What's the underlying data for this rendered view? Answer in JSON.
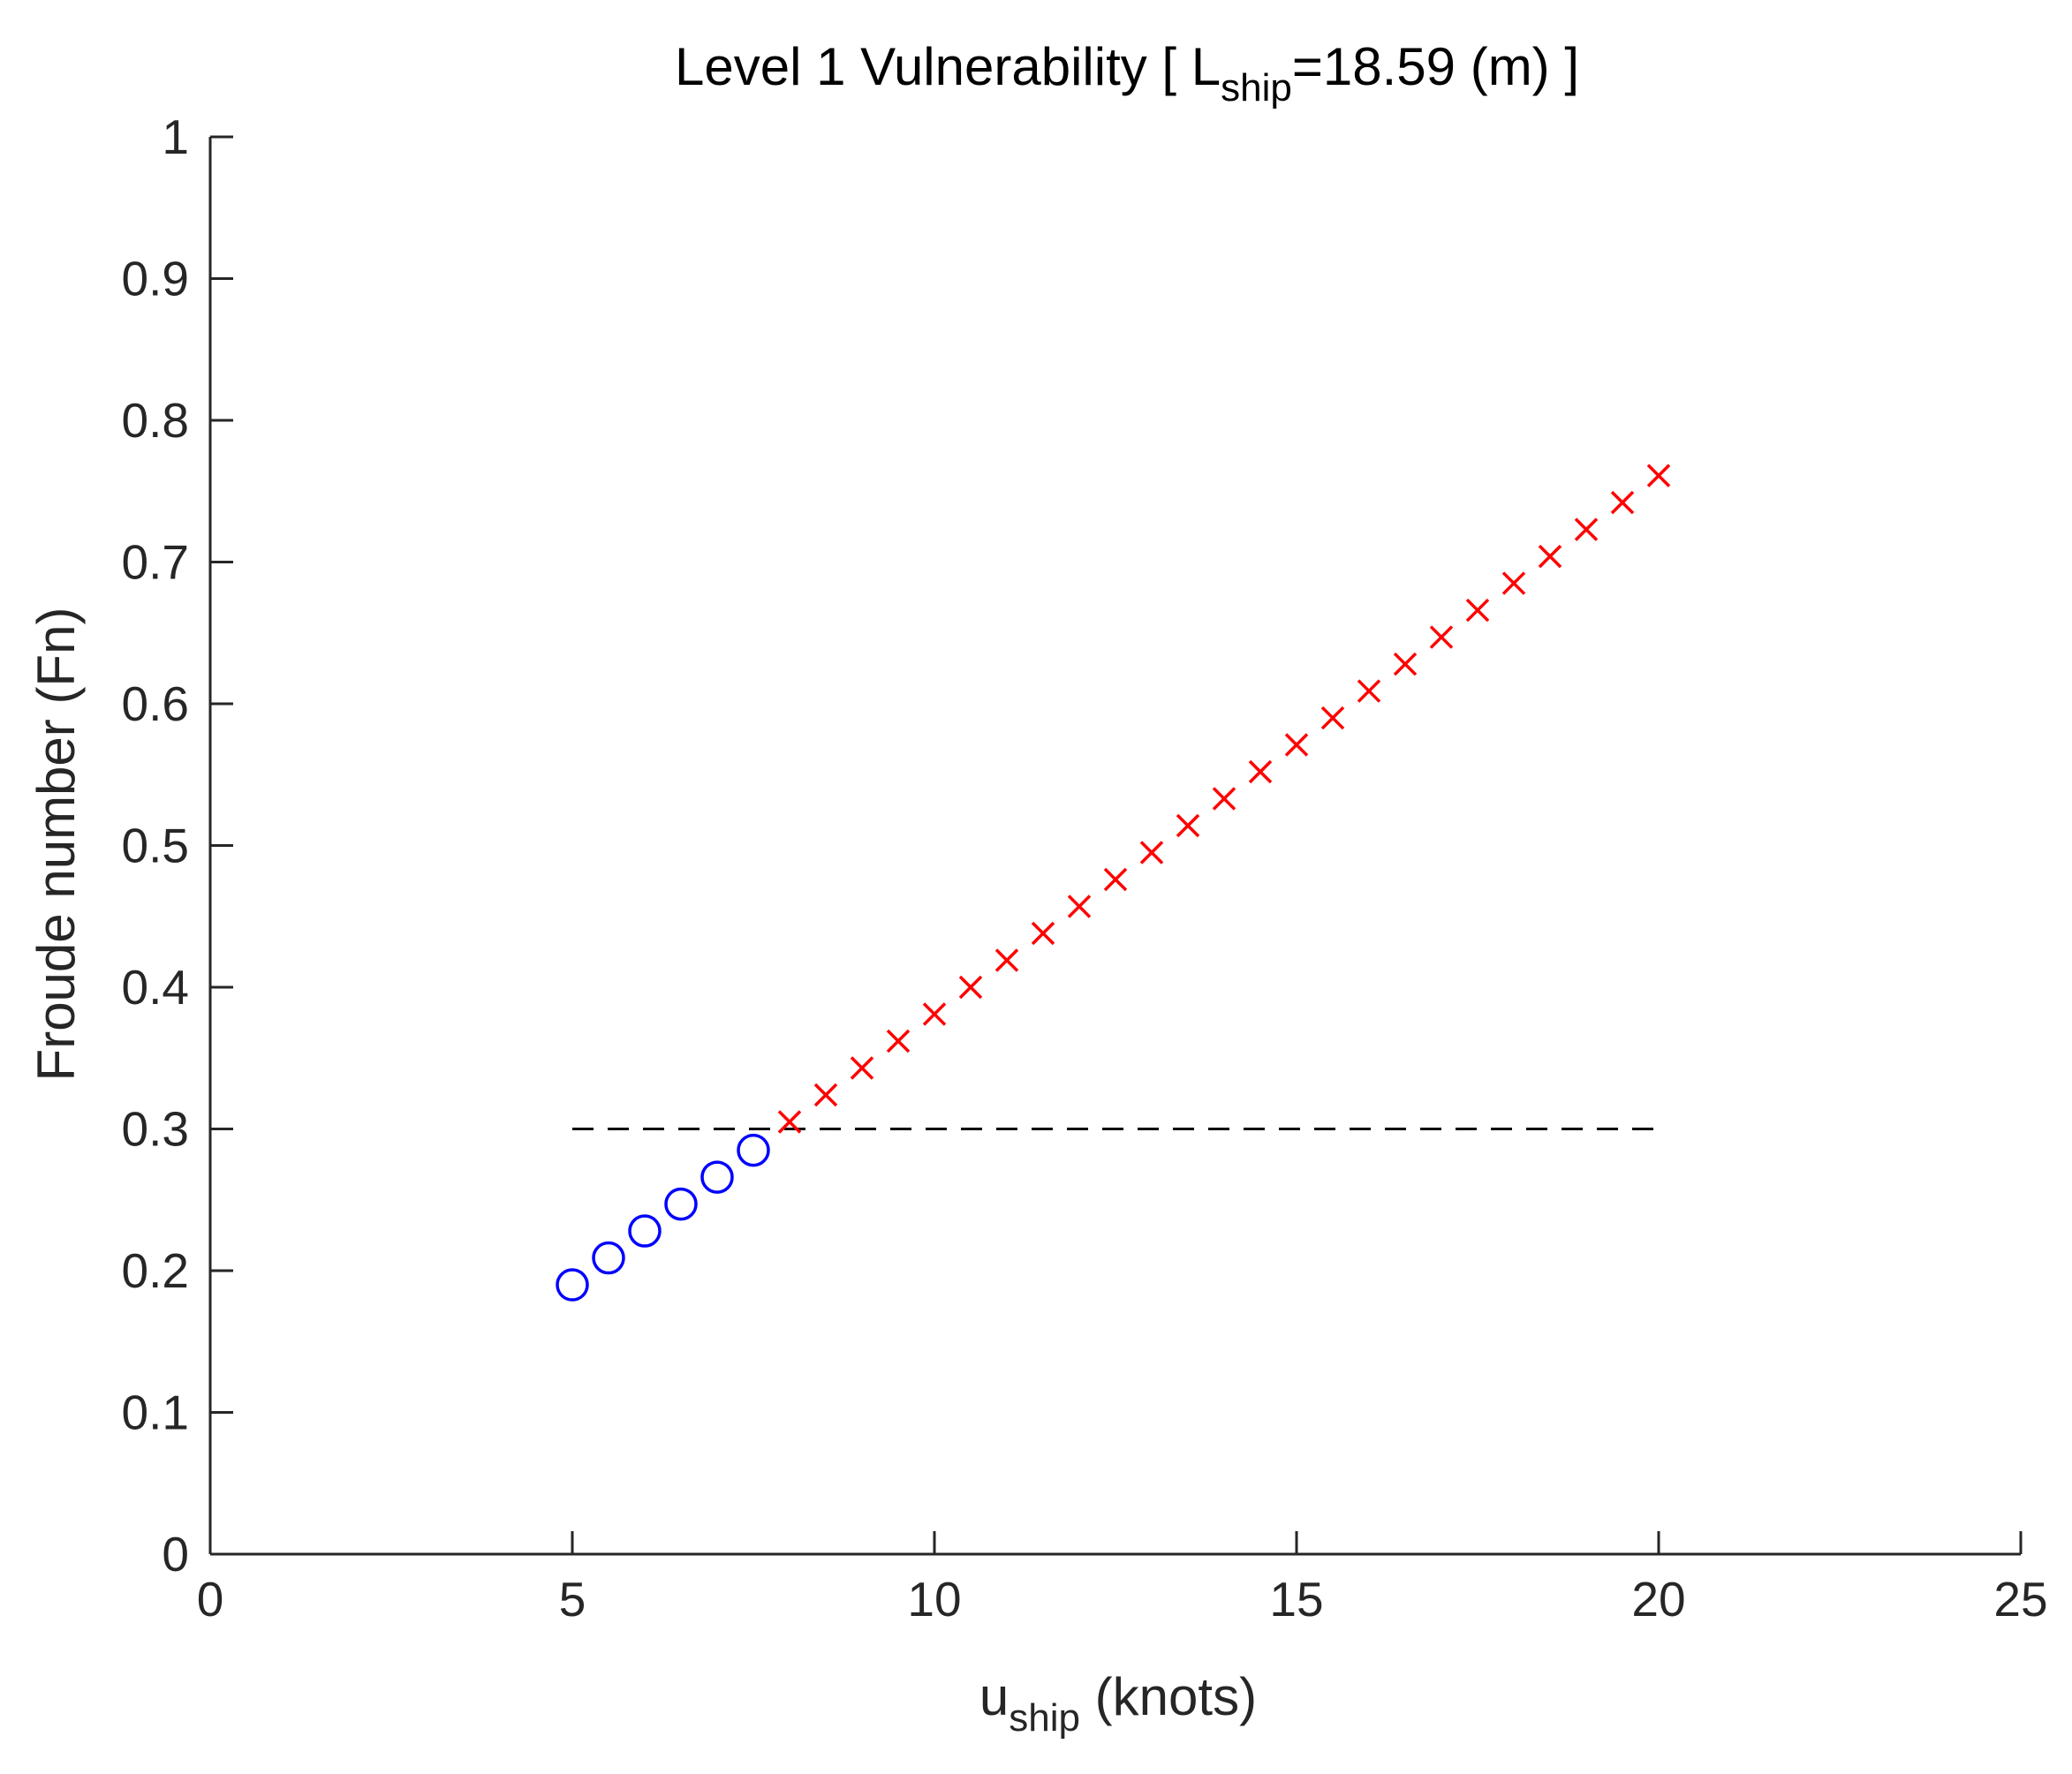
{
  "chart_data": {
    "type": "scatter",
    "title": {
      "main": "Level 1 Vulnerability [ L",
      "sub": "ship",
      "rest": "=18.59 (m) ]"
    },
    "xlabel": {
      "main": "u",
      "sub": "ship",
      "rest": " (knots)"
    },
    "ylabel": "Froude number (Fn)",
    "xlim": [
      0,
      25
    ],
    "ylim": [
      0,
      1
    ],
    "xticks": [
      0,
      5,
      10,
      15,
      20,
      25
    ],
    "xtick_labels": [
      "0",
      "5",
      "10",
      "15",
      "20",
      "25"
    ],
    "yticks": [
      0,
      0.1,
      0.2,
      0.3,
      0.4,
      0.5,
      0.6,
      0.7,
      0.8,
      0.9,
      1
    ],
    "ytick_labels": [
      "0",
      "0.1",
      "0.2",
      "0.3",
      "0.4",
      "0.5",
      "0.6",
      "0.7",
      "0.8",
      "0.9",
      "1"
    ],
    "grid": false,
    "legend": false,
    "threshold": {
      "y": 0.3,
      "x_range": [
        5,
        20
      ],
      "style": "dashed",
      "color": "#000000"
    },
    "series": [
      {
        "marker": "circle",
        "color": "#0000ff",
        "x": [
          5,
          5.5,
          6,
          6.5,
          7,
          7.5
        ],
        "y": [
          0.19,
          0.209,
          0.228,
          0.247,
          0.266,
          0.285
        ]
      },
      {
        "marker": "x",
        "color": "#ff0000",
        "x": [
          8,
          8.5,
          9,
          9.5,
          10,
          10.5,
          11,
          11.5,
          12,
          12.5,
          13,
          13.5,
          14,
          14.5,
          15,
          15.5,
          16,
          16.5,
          17,
          17.5,
          18,
          18.5,
          19,
          19.5,
          20
        ],
        "y": [
          0.305,
          0.324,
          0.343,
          0.362,
          0.381,
          0.4,
          0.419,
          0.438,
          0.457,
          0.476,
          0.495,
          0.514,
          0.533,
          0.552,
          0.571,
          0.59,
          0.609,
          0.628,
          0.647,
          0.666,
          0.685,
          0.704,
          0.723,
          0.742,
          0.761
        ]
      }
    ]
  }
}
